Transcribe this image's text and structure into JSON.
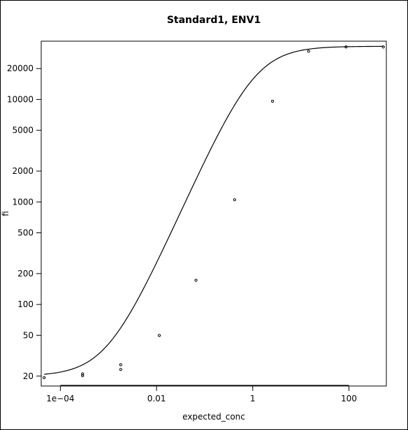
{
  "chart_data": {
    "type": "scatter",
    "title": "Standard1, ENV1",
    "xlabel": "expected_conc",
    "ylabel": "fi",
    "x_scale": "log",
    "y_scale": "log",
    "xlim": [
      4e-05,
      600
    ],
    "ylim": [
      16,
      37000
    ],
    "grid": false,
    "x_ticks": [
      {
        "value": 0.0001,
        "label": "1e−04"
      },
      {
        "value": 0.01,
        "label": "0.01"
      },
      {
        "value": 1,
        "label": "1"
      },
      {
        "value": 100,
        "label": "100"
      }
    ],
    "y_ticks": [
      {
        "value": 20,
        "label": "20"
      },
      {
        "value": 50,
        "label": "50"
      },
      {
        "value": 100,
        "label": "100"
      },
      {
        "value": 200,
        "label": "200"
      },
      {
        "value": 500,
        "label": "500"
      },
      {
        "value": 1000,
        "label": "1000"
      },
      {
        "value": 2000,
        "label": "2000"
      },
      {
        "value": 5000,
        "label": "5000"
      },
      {
        "value": 10000,
        "label": "10000"
      },
      {
        "value": 20000,
        "label": "20000"
      }
    ],
    "series": [
      {
        "type": "scatter",
        "points": [
          {
            "x": 4.6e-05,
            "y": 19.3
          },
          {
            "x": 0.00029,
            "y": 20.2
          },
          {
            "x": 0.00029,
            "y": 21.0
          },
          {
            "x": 0.0018,
            "y": 23.2
          },
          {
            "x": 0.0018,
            "y": 25.8
          },
          {
            "x": 0.0114,
            "y": 49.8
          },
          {
            "x": 0.066,
            "y": 172
          },
          {
            "x": 0.42,
            "y": 1050
          },
          {
            "x": 2.58,
            "y": 9600
          },
          {
            "x": 14.5,
            "y": 29500
          },
          {
            "x": 87,
            "y": 32500
          },
          {
            "x": 520,
            "y": 32500
          }
        ]
      },
      {
        "type": "line",
        "model": "4-parameter logistic fit",
        "params": {
          "bottom": 20,
          "top": 33000,
          "ec50": 1.1,
          "hill": 1.05
        },
        "x_range": [
          4.6e-05,
          520
        ]
      }
    ]
  }
}
